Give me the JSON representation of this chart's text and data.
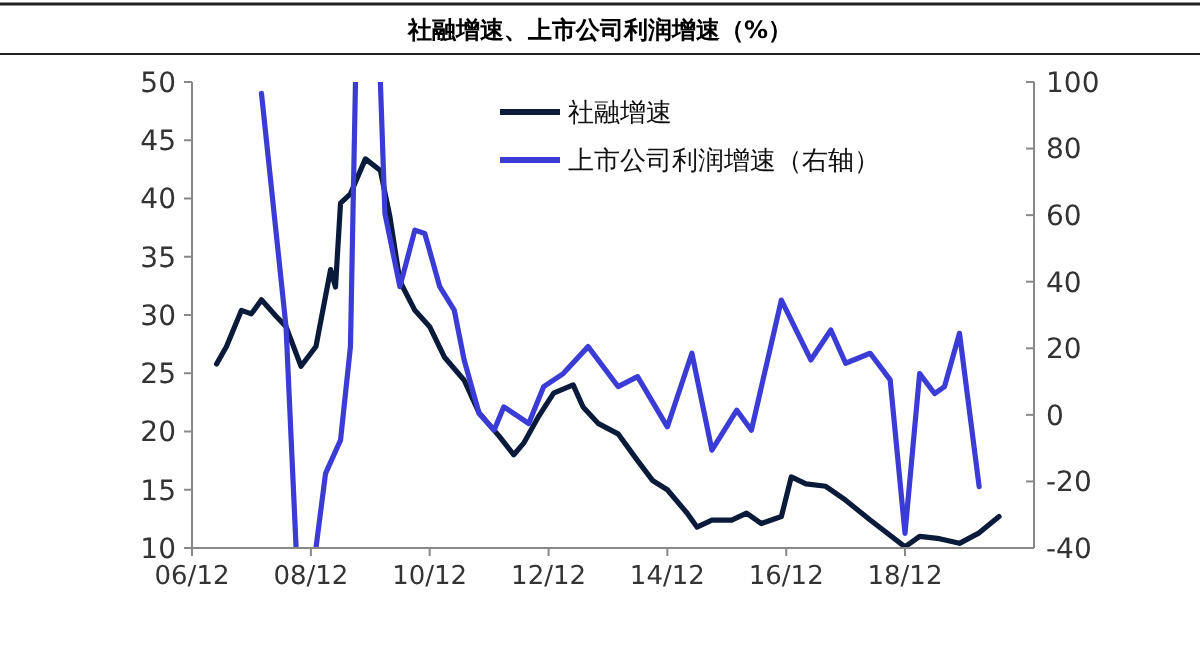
{
  "chart_data": {
    "type": "line",
    "title": "社融增速、上市公司利润增速（%）",
    "xlim": [
      "2006-12",
      "2021-02"
    ],
    "xticks": [
      {
        "value": "2006-12",
        "label": "06/12"
      },
      {
        "value": "2008-12",
        "label": "08/12"
      },
      {
        "value": "2010-12",
        "label": "10/12"
      },
      {
        "value": "2012-12",
        "label": "12/12"
      },
      {
        "value": "2014-12",
        "label": "14/12"
      },
      {
        "value": "2016-12",
        "label": "16/12"
      },
      {
        "value": "2018-12",
        "label": "18/12"
      }
    ],
    "ylim": [
      10,
      50
    ],
    "yticks": [
      10,
      15,
      20,
      25,
      30,
      35,
      40,
      45,
      50
    ],
    "y2lim": [
      -40,
      100
    ],
    "y2ticks": [
      -40,
      -20,
      0,
      20,
      40,
      60,
      80,
      100
    ],
    "legend": "top",
    "grid": false,
    "marker": "none",
    "line_style": "solid",
    "series": [
      {
        "name": "社融增速",
        "color": "#0a1a3a",
        "x": [
          "2007-05",
          "2007-07",
          "2007-10",
          "2007-12",
          "2008-02",
          "2008-05",
          "2008-07",
          "2008-10",
          "2009-01",
          "2009-04",
          "2009-05",
          "2009-06",
          "2009-08",
          "2009-11",
          "2010-02",
          "2010-04",
          "2010-06",
          "2010-09",
          "2010-12",
          "2011-03",
          "2011-07",
          "2011-10",
          "2012-02",
          "2012-05",
          "2012-07",
          "2012-10",
          "2013-01",
          "2013-05",
          "2013-07",
          "2013-10",
          "2014-02",
          "2014-06",
          "2014-09",
          "2014-12",
          "2015-04",
          "2015-06",
          "2015-09",
          "2016-01",
          "2016-04",
          "2016-07",
          "2016-11",
          "2017-01",
          "2017-04",
          "2017-08",
          "2017-12",
          "2018-05",
          "2018-12",
          "2019-03",
          "2019-07",
          "2019-11",
          "2020-03",
          "2020-07"
        ],
        "values": [
          25.8,
          27.3,
          30.4,
          30.1,
          31.3,
          29.9,
          29.0,
          25.6,
          27.3,
          33.9,
          32.4,
          39.6,
          40.4,
          43.4,
          42.4,
          38.4,
          32.9,
          30.4,
          29.0,
          26.4,
          24.4,
          21.6,
          19.6,
          18.0,
          19.0,
          21.3,
          23.3,
          24.0,
          22.1,
          20.7,
          19.8,
          17.5,
          15.8,
          15.0,
          13.0,
          11.8,
          12.4,
          12.4,
          13.0,
          12.1,
          12.7,
          16.1,
          15.5,
          15.3,
          14.1,
          12.4,
          10.1,
          11.0,
          10.8,
          10.4,
          11.3,
          12.7
        ]
      },
      {
        "name": "上市公司利润增速（右轴）",
        "color": "#3b3bd6",
        "axis": "y2",
        "x": [
          "2008-02",
          "2008-07",
          "2008-09",
          "2008-11",
          "2009-01",
          "2009-03",
          "2009-06",
          "2009-08",
          "2009-09",
          "2009-11",
          "2010-02",
          "2010-03",
          "2010-06",
          "2010-09",
          "2010-11",
          "2011-02",
          "2011-05",
          "2011-07",
          "2011-10",
          "2012-01",
          "2012-03",
          "2012-08",
          "2012-11",
          "2013-03",
          "2013-08",
          "2014-02",
          "2014-06",
          "2014-12",
          "2015-05",
          "2015-09",
          "2016-02",
          "2016-05",
          "2016-11",
          "2017-05",
          "2017-09",
          "2017-12",
          "2018-05",
          "2018-09",
          "2018-12",
          "2019-03",
          "2019-06",
          "2019-08",
          "2019-11",
          "2020-03"
        ],
        "values": [
          96.6,
          26.5,
          -40,
          null,
          -40,
          -17.6,
          -7.6,
          20.5,
          100,
          null,
          100,
          60.5,
          38.5,
          55.5,
          54.5,
          38.5,
          31.5,
          16.5,
          0.4,
          -4.6,
          2.4,
          -2.6,
          8.5,
          12.4,
          20.5,
          8.5,
          11.5,
          -3.6,
          18.5,
          -10.6,
          1.4,
          -4.6,
          34.5,
          16.5,
          25.5,
          15.5,
          18.5,
          10.5,
          -35.6,
          12.4,
          6.4,
          8.5,
          24.5,
          -21.6
        ]
      }
    ]
  }
}
